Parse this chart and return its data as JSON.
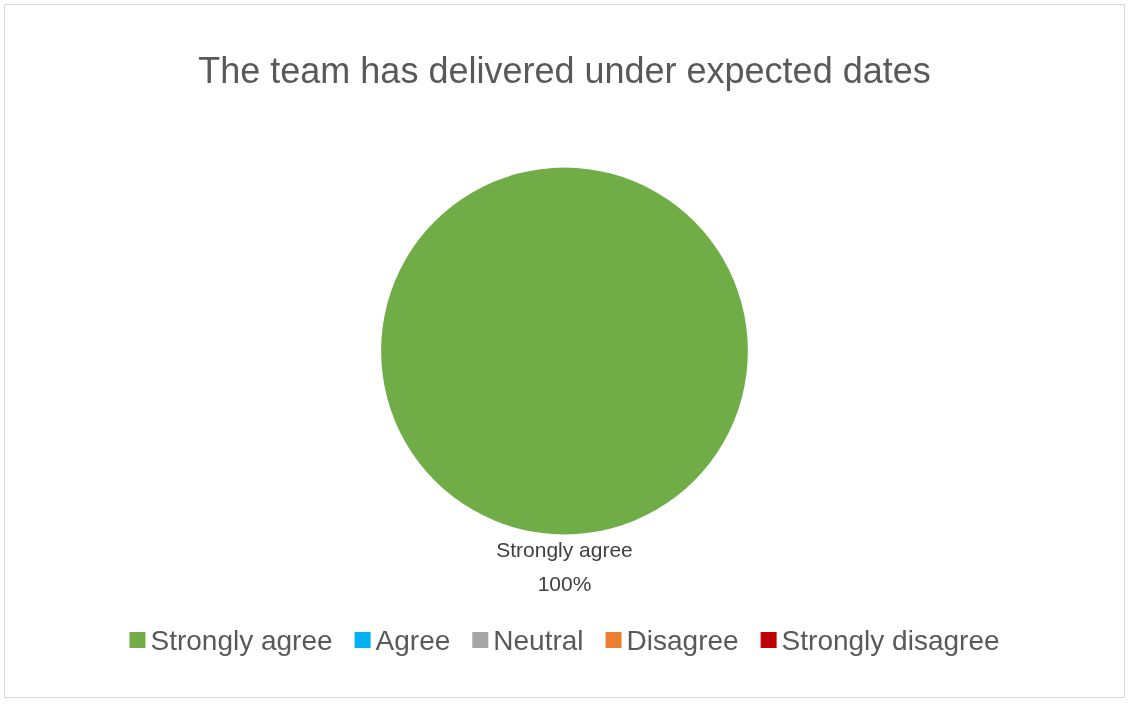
{
  "chart_data": {
    "type": "pie",
    "title": "The team has delivered under expected dates",
    "categories": [
      "Strongly agree",
      "Agree",
      "Neutral",
      "Disagree",
      "Strongly disagree"
    ],
    "values": [
      100,
      0,
      0,
      0,
      0
    ],
    "colors": [
      "#70ad47",
      "#00b0f0",
      "#a5a5a5",
      "#ed7d31",
      "#c00000"
    ],
    "value_labels": [
      "100%",
      null,
      null,
      null,
      null
    ],
    "legend": "bottom"
  }
}
